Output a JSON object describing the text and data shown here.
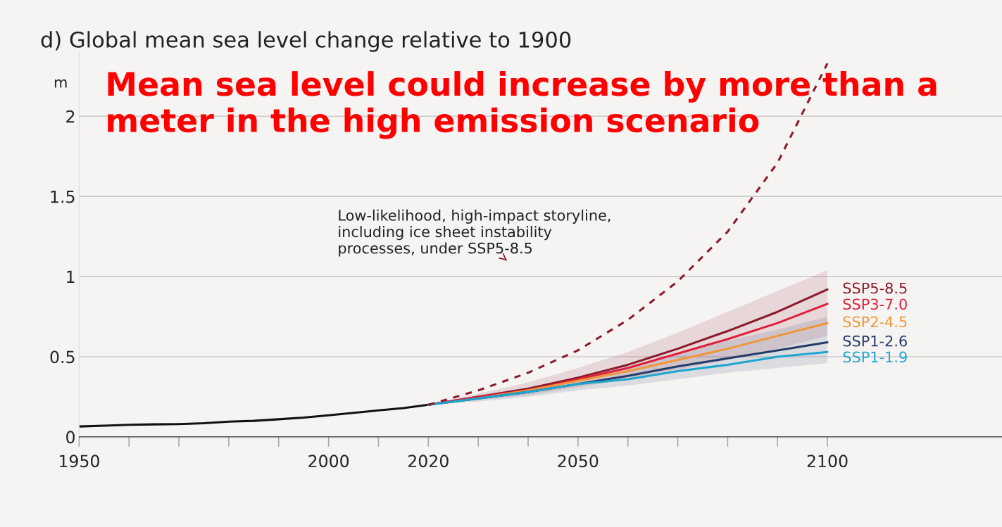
{
  "chart_data": {
    "type": "line",
    "title": "d) Global mean sea level change relative to 1900",
    "ylabel": "m",
    "x": [
      1950,
      1955,
      1960,
      1965,
      1970,
      1975,
      1980,
      1985,
      1990,
      1995,
      2000,
      2005,
      2010,
      2015,
      2020
    ],
    "series": [
      {
        "color": "#111111",
        "values": [
          0.065,
          0.07,
          0.075,
          0.078,
          0.08,
          0.085,
          0.095,
          0.1,
          0.11,
          0.12,
          0.135,
          0.15,
          0.165,
          0.18,
          0.2
        ]
      },
      {
        "name": "SSP5-8.5",
        "color": "#8b1a2b",
        "x": [
          2020,
          2030,
          2040,
          2050,
          2060,
          2070,
          2080,
          2090,
          2100
        ],
        "values": [
          0.2,
          0.25,
          0.3,
          0.37,
          0.45,
          0.55,
          0.66,
          0.78,
          0.92
        ],
        "lower": [
          0.2,
          0.23,
          0.26,
          0.31,
          0.36,
          0.42,
          0.48,
          0.55,
          0.63
        ],
        "upper": [
          0.2,
          0.27,
          0.34,
          0.43,
          0.53,
          0.65,
          0.78,
          0.91,
          1.04
        ]
      },
      {
        "name": "SSP3-7.0",
        "color": "#e0203a",
        "x": [
          2020,
          2030,
          2040,
          2050,
          2060,
          2070,
          2080,
          2090,
          2100
        ],
        "values": [
          0.2,
          0.25,
          0.29,
          0.36,
          0.43,
          0.52,
          0.61,
          0.71,
          0.83
        ]
      },
      {
        "name": "SSP2-4.5",
        "color": "#f0963a",
        "x": [
          2020,
          2030,
          2040,
          2050,
          2060,
          2070,
          2080,
          2090,
          2100
        ],
        "values": [
          0.2,
          0.24,
          0.29,
          0.35,
          0.41,
          0.48,
          0.55,
          0.63,
          0.71
        ]
      },
      {
        "name": "SSP1-2.6",
        "color": "#253a6b",
        "x": [
          2020,
          2030,
          2040,
          2050,
          2060,
          2070,
          2080,
          2090,
          2100
        ],
        "values": [
          0.2,
          0.24,
          0.28,
          0.33,
          0.38,
          0.44,
          0.49,
          0.54,
          0.59
        ],
        "lower": [
          0.2,
          0.22,
          0.25,
          0.29,
          0.32,
          0.36,
          0.4,
          0.43,
          0.46
        ],
        "upper": [
          0.2,
          0.26,
          0.31,
          0.37,
          0.44,
          0.52,
          0.6,
          0.67,
          0.75
        ]
      },
      {
        "name": "SSP1-1.9",
        "color": "#1ea6d0",
        "x": [
          2020,
          2030,
          2040,
          2050,
          2060,
          2070,
          2080,
          2090,
          2100
        ],
        "values": [
          0.2,
          0.24,
          0.28,
          0.33,
          0.36,
          0.41,
          0.45,
          0.5,
          0.53
        ]
      },
      {
        "color": "#8b1a2b",
        "line_style": "dashed",
        "x": [
          2020,
          2030,
          2040,
          2050,
          2060,
          2070,
          2080,
          2090,
          2100
        ],
        "values": [
          0.2,
          0.29,
          0.4,
          0.54,
          0.73,
          0.97,
          1.28,
          1.71,
          2.33
        ]
      }
    ],
    "xlim": [
      1950,
      2135
    ],
    "ylim": [
      0,
      2.4
    ],
    "xticks": [
      1950,
      {
        "value": 1960,
        "label": null
      },
      {
        "value": 1970,
        "label": null
      },
      {
        "value": 1980,
        "label": null
      },
      {
        "value": 1990,
        "label": null
      },
      2000,
      {
        "value": 2010,
        "label": null
      },
      2020,
      {
        "value": 2030,
        "label": null
      },
      {
        "value": 2040,
        "label": null
      },
      2050,
      {
        "value": 2060,
        "label": null
      },
      {
        "value": 2070,
        "label": null
      },
      {
        "value": 2080,
        "label": null
      },
      {
        "value": 2090,
        "label": null
      },
      2100
    ],
    "yticks": [
      0,
      0.5,
      1,
      1.5,
      2
    ],
    "grid": "y",
    "legend": false,
    "annotations": [
      "Low-likelihood, high-impact storyline,\nincluding ice sheet instability\nprocesses, under SSP5-8.5",
      "Mean sea level could increase by more than a meter in the high emission scenario"
    ]
  }
}
